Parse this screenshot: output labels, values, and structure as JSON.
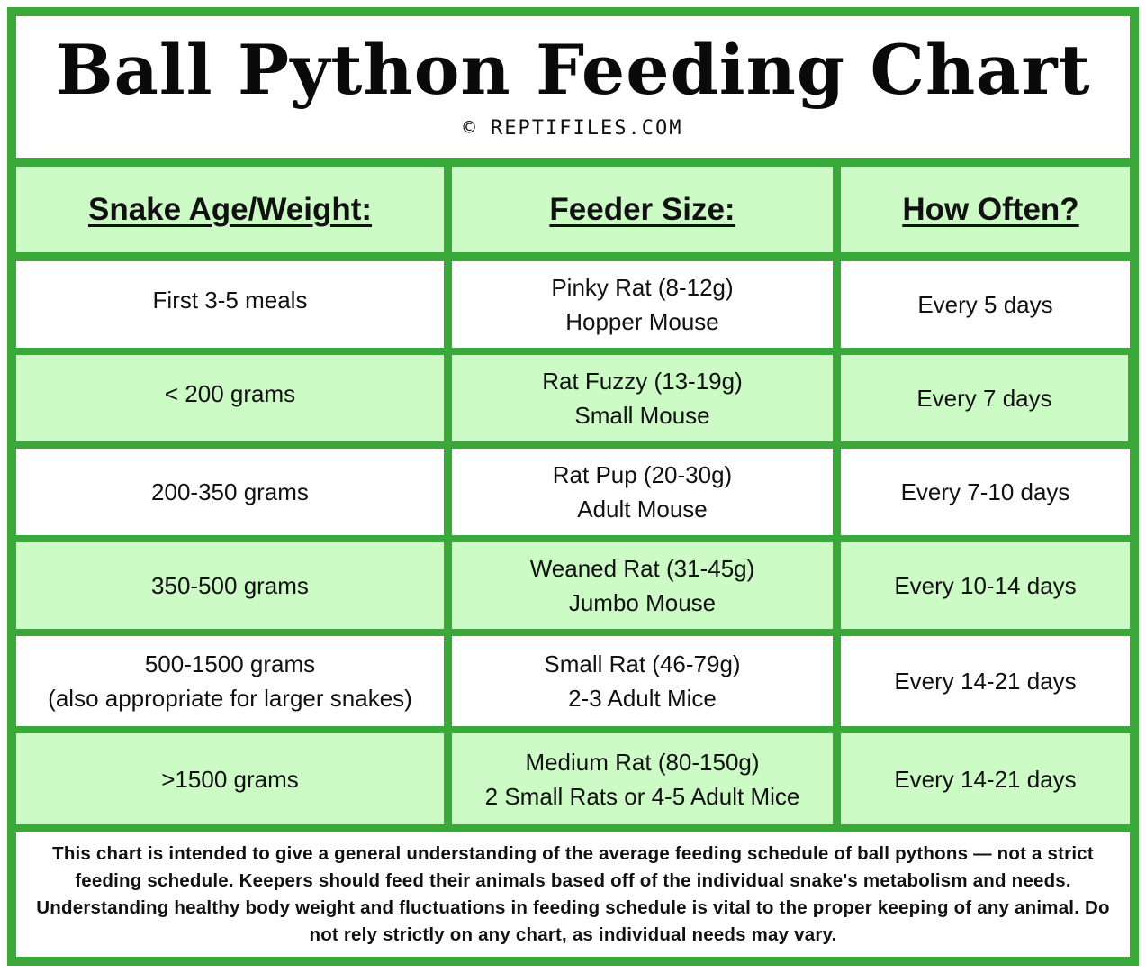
{
  "title": "Ball Python Feeding Chart",
  "credit": "© REPTIFILES.COM",
  "headers": {
    "age": "Snake Age/Weight:",
    "feeder": "Feeder Size:",
    "often": "How Often?"
  },
  "rows": [
    {
      "age": [
        "First 3-5 meals"
      ],
      "feeder": [
        "Pinky Rat (8-12g)",
        "Hopper Mouse"
      ],
      "often": "Every 5 days"
    },
    {
      "age": [
        "< 200 grams"
      ],
      "feeder": [
        "Rat Fuzzy (13-19g)",
        "Small Mouse"
      ],
      "often": "Every 7 days"
    },
    {
      "age": [
        "200-350 grams"
      ],
      "feeder": [
        "Rat Pup (20-30g)",
        "Adult Mouse"
      ],
      "often": "Every 7-10 days"
    },
    {
      "age": [
        "350-500 grams"
      ],
      "feeder": [
        "Weaned Rat (31-45g)",
        "Jumbo Mouse"
      ],
      "often": "Every 10-14 days"
    },
    {
      "age": [
        "500-1500 grams",
        "(also appropriate for larger snakes)"
      ],
      "feeder": [
        "Small Rat (46-79g)",
        "2-3 Adult Mice"
      ],
      "often": "Every 14-21 days"
    },
    {
      "age": [
        ">1500 grams"
      ],
      "feeder": [
        "Medium Rat (80-150g)",
        "2 Small Rats or 4-5 Adult Mice"
      ],
      "often": "Every 14-21 days"
    }
  ],
  "note": "This chart is intended to give a general understanding of the average feeding schedule of ball pythons — not a strict feeding schedule. Keepers should feed their animals based off of the individual snake's metabolism and needs. Understanding healthy body weight and fluctuations in feeding schedule is vital to the proper keeping of any animal. Do not rely strictly on any chart, as individual needs may vary.",
  "colors": {
    "border": "#3aa93a",
    "row_alt": "#ccfbc6",
    "row_plain": "#ffffff"
  }
}
